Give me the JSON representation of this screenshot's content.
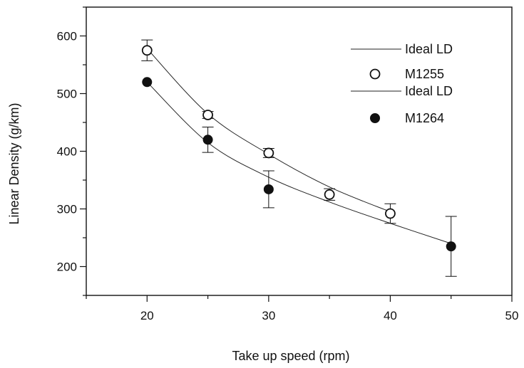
{
  "chart_data": {
    "type": "scatter",
    "xlabel": "Take up speed (rpm)",
    "ylabel": "Linear Density (g/km)",
    "xlim": [
      15,
      50
    ],
    "ylim": [
      150,
      650
    ],
    "xticks": [
      20,
      30,
      40,
      50
    ],
    "yticks": [
      200,
      300,
      400,
      500,
      600
    ],
    "grid": false,
    "legend_position": "top-right",
    "series": [
      {
        "name": "M1255",
        "marker": "open-circle",
        "points": [
          {
            "x": 20,
            "y": 575,
            "err_low": 18,
            "err_high": 18
          },
          {
            "x": 25,
            "y": 463,
            "err_low": 6,
            "err_high": 6
          },
          {
            "x": 30,
            "y": 397,
            "err_low": 8,
            "err_high": 8
          },
          {
            "x": 35,
            "y": 325,
            "err_low": 10,
            "err_high": 10
          },
          {
            "x": 40,
            "y": 292,
            "err_low": 17,
            "err_high": 17
          }
        ]
      },
      {
        "name": "M1264",
        "marker": "filled-circle",
        "points": [
          {
            "x": 20,
            "y": 520,
            "err_low": 0,
            "err_high": 0
          },
          {
            "x": 25,
            "y": 420,
            "err_low": 22,
            "err_high": 22
          },
          {
            "x": 30,
            "y": 334,
            "err_low": 32,
            "err_high": 32
          },
          {
            "x": 45,
            "y": 235,
            "err_low": 52,
            "err_high": 52
          }
        ]
      }
    ],
    "fit_lines": [
      {
        "name": "Ideal LD",
        "x": [
          20,
          25,
          30,
          35,
          40
        ],
        "y": [
          578,
          465,
          395,
          338,
          295
        ]
      },
      {
        "name": "Ideal LD",
        "x": [
          20,
          25,
          30,
          35,
          40,
          45
        ],
        "y": [
          520,
          415,
          355,
          312,
          275,
          240
        ]
      }
    ],
    "legend": [
      {
        "label": "Ideal LD",
        "kind": "line"
      },
      {
        "label": "M1255",
        "kind": "open-circle"
      },
      {
        "label": "Ideal LD",
        "kind": "line"
      },
      {
        "label": "M1264",
        "kind": "filled-circle"
      }
    ]
  }
}
